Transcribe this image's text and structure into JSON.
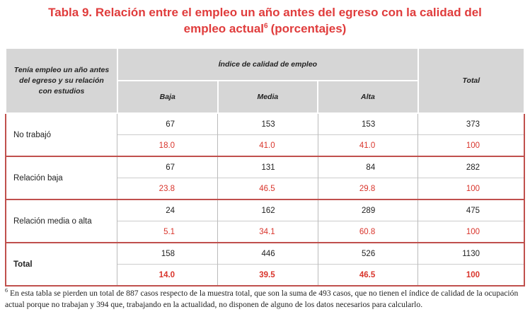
{
  "header": {
    "title": "Tabla 9. Relación entre el empleo un año antes del egreso con la calidad del empleo actual",
    "title_sup": "6",
    "title_end": "(porcentajes)"
  },
  "table": {
    "row_header": "Tenía empleo un año antes del egreso y su relación con estudios",
    "group_header": "Índice de calidad de empleo",
    "columns": [
      "Baja",
      "Media",
      "Alta"
    ],
    "total_header": "Total",
    "rows": [
      {
        "label": "No trabajó",
        "counts": [
          67,
          153,
          153,
          373
        ],
        "percents": [
          "18.0",
          "41.0",
          "41.0",
          "100"
        ]
      },
      {
        "label": "Relación baja",
        "counts": [
          67,
          131,
          84,
          282
        ],
        "percents": [
          "23.8",
          "46.5",
          "29.8",
          "100"
        ]
      },
      {
        "label": "Relación media o alta",
        "counts": [
          24,
          162,
          289,
          475
        ],
        "percents": [
          "5.1",
          "34.1",
          "60.8",
          "100"
        ]
      },
      {
        "label": "Total",
        "counts": [
          158,
          446,
          526,
          1130
        ],
        "percents": [
          "14.0",
          "39.5",
          "46.5",
          "100"
        ]
      }
    ]
  },
  "footnote": {
    "mark": "6",
    "text": "En esta tabla se pierden un total de 887 casos respecto de la muestra total, que son la suma de 493 casos, que no tienen el índice de calidad de la ocupación actual porque no trabajan y 394 que, trabajando en la actualidad, no disponen de alguno de los datos necesarios para calcularlo."
  }
}
